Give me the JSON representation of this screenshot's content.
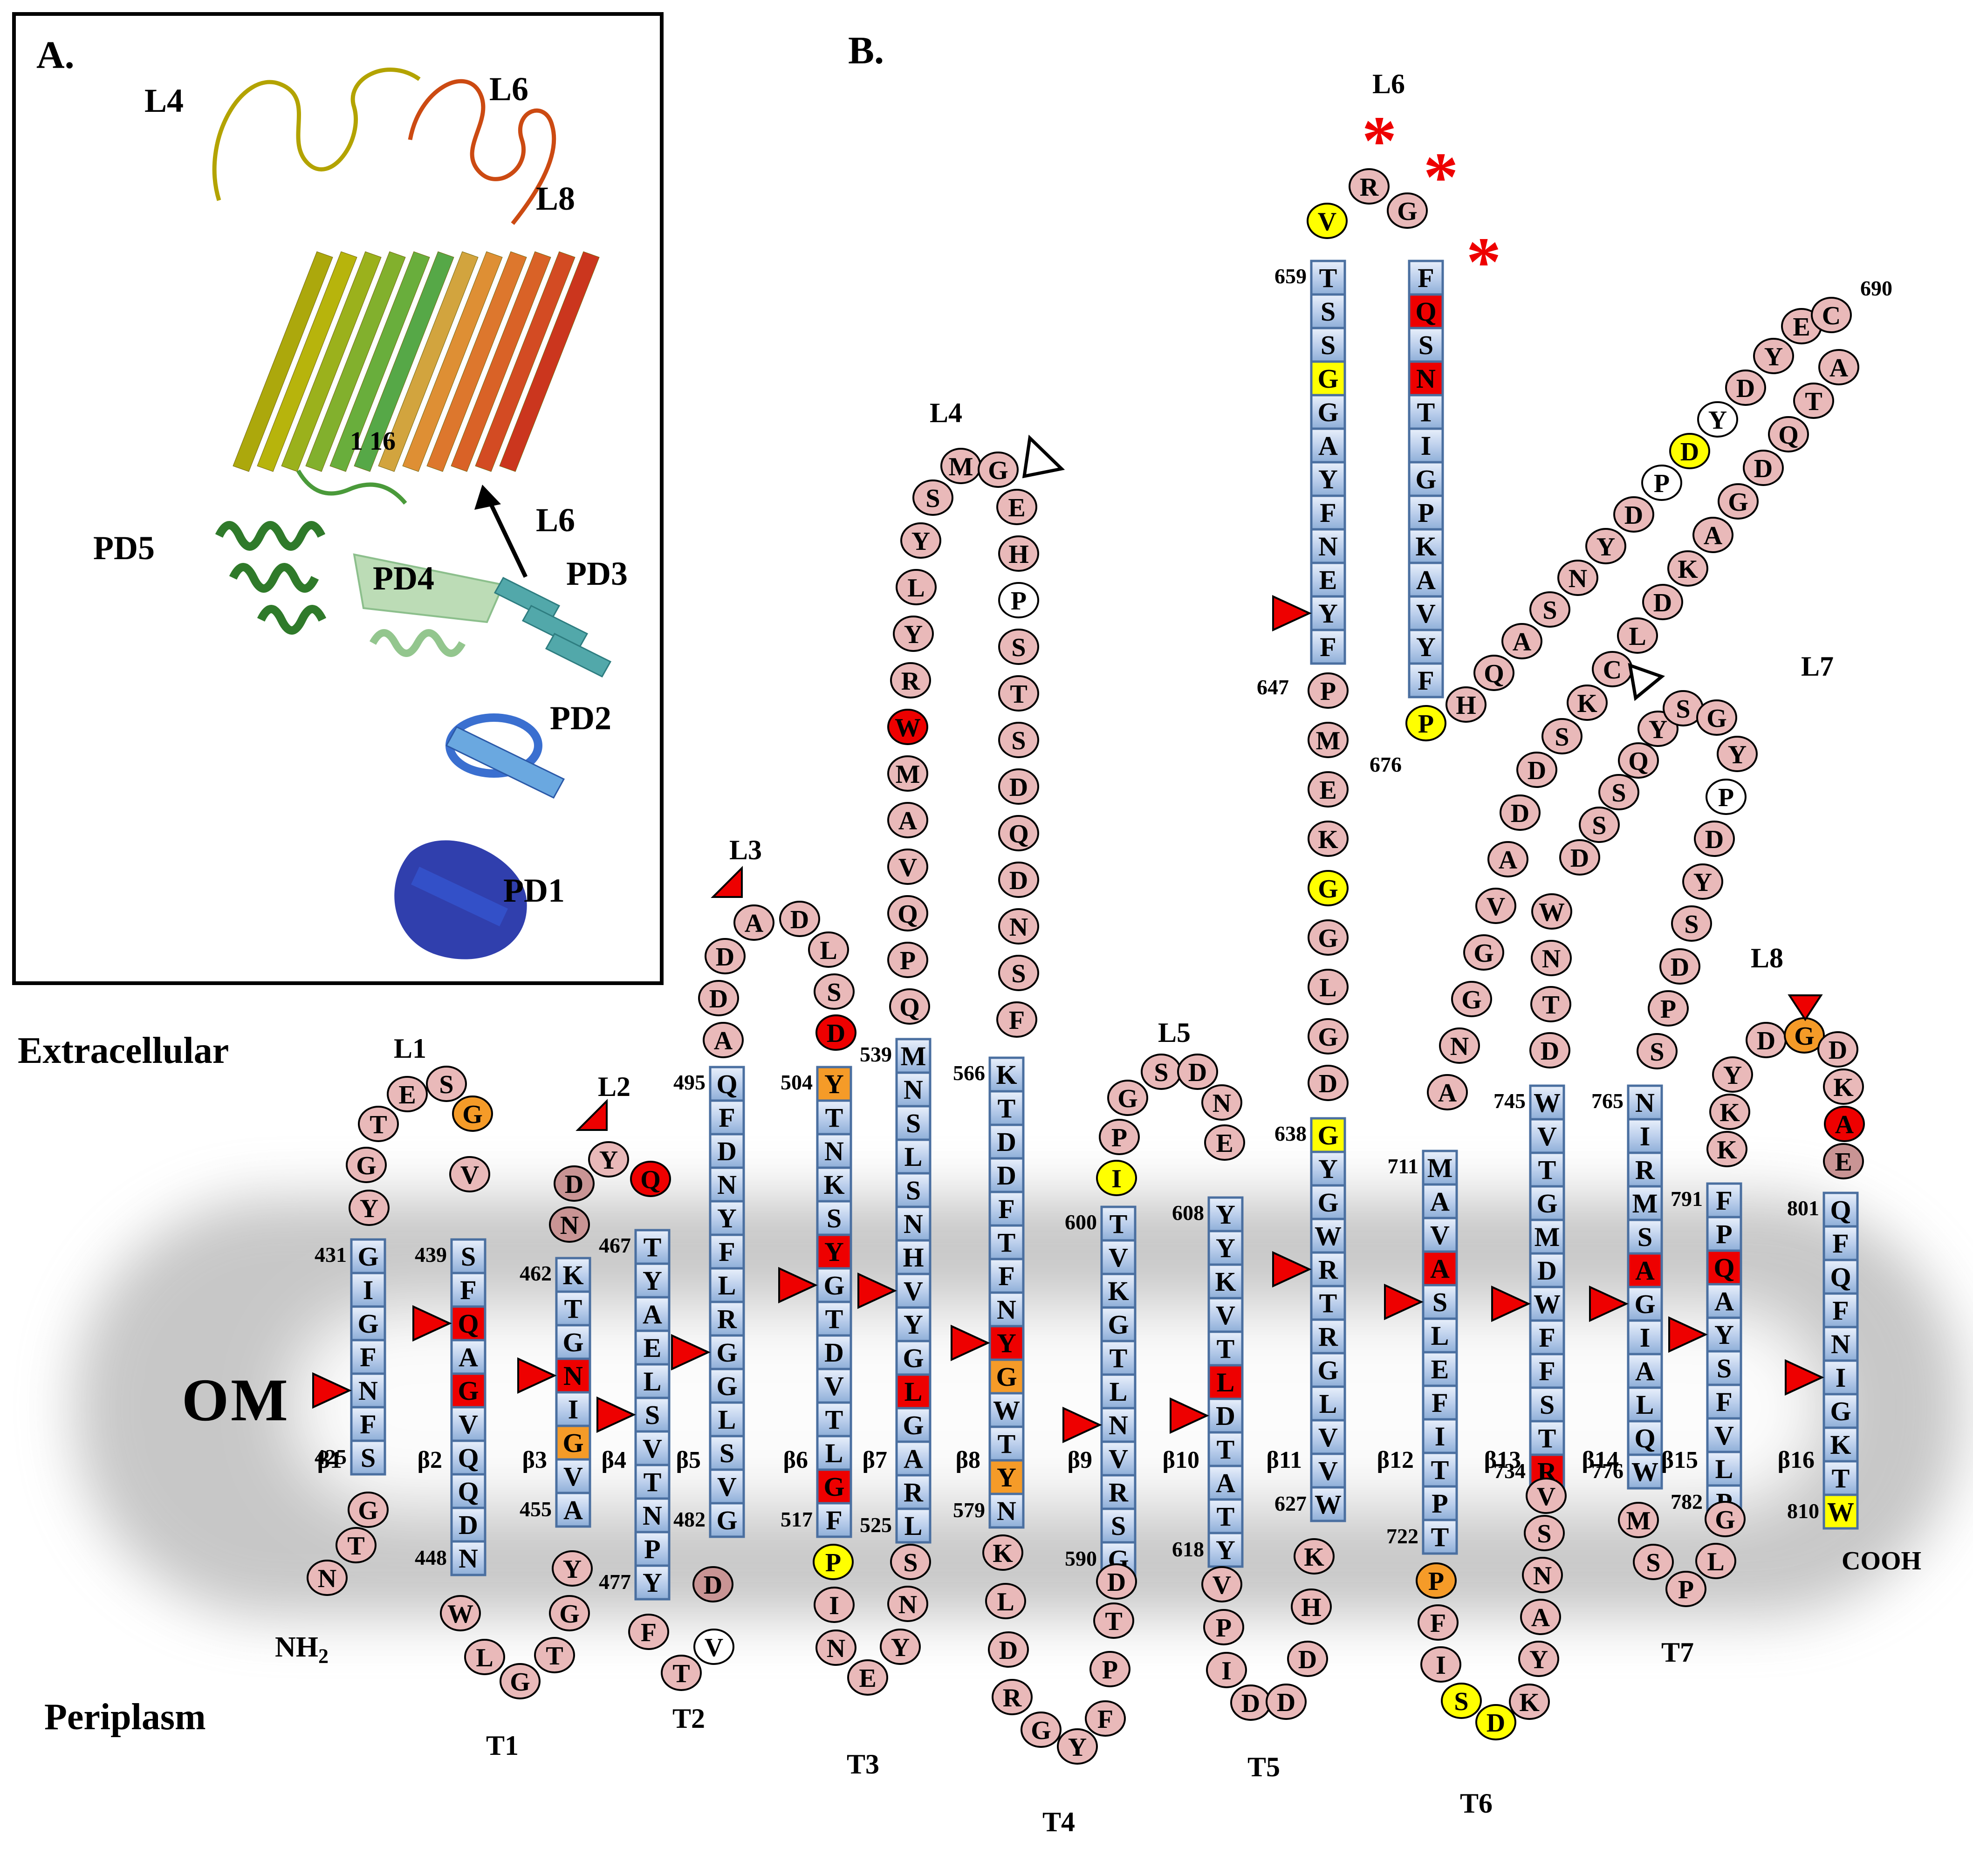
{
  "panel_a": {
    "label": "A.",
    "loop_labels": [
      {
        "id": "pa-l4",
        "text": "L4"
      },
      {
        "id": "pa-l6",
        "text": "L6"
      },
      {
        "id": "pa-l8",
        "text": "L8"
      }
    ],
    "range_label": "1 16",
    "arrow_label": "L6",
    "domain_labels": [
      {
        "id": "pd5",
        "text": "PD5"
      },
      {
        "id": "pd4",
        "text": "PD4"
      },
      {
        "id": "pd3",
        "text": "PD3"
      },
      {
        "id": "pd2",
        "text": "PD2"
      },
      {
        "id": "pd1",
        "text": "PD1"
      }
    ]
  },
  "panel_b": {
    "label": "B.",
    "regions": {
      "extracellular": "Extracellular",
      "membrane": "OM",
      "periplasm": "Periplasm"
    },
    "termini": {
      "n": "NH",
      "n_sub": "2",
      "c": "COOH"
    },
    "palette": {
      "red": "#ee0000",
      "orange": "#f59b28",
      "yellow": "#ffff00",
      "white": "#ffffff",
      "dark": "#c99494",
      "circle": "#e9b9b9",
      "square_light": "#e9f0fb",
      "square_mid": "#b9cdeb",
      "square_deep": "#8fafd8",
      "square_border": "#4a6fa0",
      "membrane_gray": "#9a9a9a"
    },
    "strands": [
      {
        "id": "b1",
        "label": "β1",
        "num_top": "431",
        "num_bottom": "425",
        "res": "GIGFNFS",
        "colors": {},
        "arrow": 4
      },
      {
        "id": "b2",
        "label": "β2",
        "num_top": "439",
        "num_bottom": "448",
        "res": "SFQAGVQQDN",
        "colors": {
          "2": "red",
          "4": "red"
        },
        "arrow": 2
      },
      {
        "id": "b3",
        "label": "β3",
        "num_top": "462",
        "num_bottom": "455",
        "res": "KTGNIGVA",
        "colors": {
          "3": "red",
          "5": "orange"
        },
        "arrow": 3
      },
      {
        "id": "b4",
        "label": "β4",
        "num_top": "467",
        "num_bottom": "477",
        "res": "TYAELSVTNPY",
        "colors": {},
        "arrow": 5
      },
      {
        "id": "b5",
        "label": "β5",
        "num_top": "495",
        "num_bottom": "482",
        "res": "QFDNYFLRGGLSVG",
        "colors": {},
        "arrow": 8
      },
      {
        "id": "b6",
        "label": "β6",
        "num_top": "504",
        "num_bottom": "517",
        "res": "YTNKSYGTDVTLGF",
        "colors": {
          "0": "orange",
          "5": "red",
          "12": "red"
        },
        "arrow": 6
      },
      {
        "id": "b7",
        "label": "β7",
        "num_top": "539",
        "num_bottom": "525",
        "res": "MNSLSNHVYGLGARL",
        "colors": {
          "10": "red"
        },
        "arrow": 7
      },
      {
        "id": "b8",
        "label": "β8",
        "num_top": "566",
        "num_bottom": "579",
        "res": "KTDDFTFNYGWTYN",
        "colors": {
          "8": "red",
          "9": "orange",
          "12": "orange"
        },
        "arrow": 8
      },
      {
        "id": "b9",
        "label": "β9",
        "num_top": "600",
        "num_bottom": "590",
        "res": "TVKGTLNVRSG",
        "colors": {},
        "arrow": 6
      },
      {
        "id": "b10",
        "label": "β10",
        "num_top": "608",
        "num_bottom": "618",
        "res": "YYKVTLDTATY",
        "colors": {
          "5": "red"
        },
        "arrow": 6
      },
      {
        "id": "b11",
        "label": "β11",
        "num_top": "638",
        "num_bottom": "627",
        "res": "GYGWRTRGLVVW",
        "colors": {
          "0": "yellow"
        },
        "arrow": 4
      },
      {
        "id": "b12",
        "label": "β12",
        "num_top": "711",
        "num_bottom": "722",
        "res": "MAVASLEFITPT",
        "colors": {
          "3": "red"
        },
        "arrow": 4
      },
      {
        "id": "b13",
        "label": "β13",
        "num_top": "745",
        "num_bottom": "734",
        "res": "WVTGMDWFFSTR",
        "colors": {
          "11": "red"
        },
        "arrow": 6
      },
      {
        "id": "b14",
        "label": "β14",
        "num_top": "765",
        "num_bottom": "776",
        "res": "NIRMSAGIALQW",
        "colors": {
          "5": "red"
        },
        "arrow": 6
      },
      {
        "id": "b15",
        "label": "β15",
        "num_top": "791",
        "num_bottom": "782",
        "res": "FPQAYSFVLP",
        "colors": {
          "2": "red"
        },
        "arrow": 4
      },
      {
        "id": "b16",
        "label": "β16",
        "num_top": "801",
        "num_bottom": "810",
        "res": "QFQFNIGKTW",
        "colors": {
          "9": "yellow"
        },
        "arrow": 5
      },
      {
        "id": "l6ext_left",
        "label": "",
        "num_top": "659",
        "num_bottom": "",
        "res": "TSSGGAYFNEYF",
        "colors": {
          "3": "yellow"
        },
        "arrow": 10
      },
      {
        "id": "l6ext_right",
        "label": "",
        "num_top": "",
        "num_bottom": "",
        "res": "FQSNTIGPKAVYF",
        "colors": {
          "1": "red",
          "3": "red"
        },
        "arrow": null
      }
    ],
    "chains": [
      {
        "id": "n_tail",
        "res": "NTG",
        "colors": {}
      },
      {
        "id": "t1",
        "label": "T1",
        "res": "WLGTGY",
        "colors": {}
      },
      {
        "id": "t2",
        "label": "T2",
        "res": "FTVD",
        "colors": {
          "2": "white",
          "3": "dark"
        }
      },
      {
        "id": "t3",
        "label": "T3",
        "res": "PINEYNS",
        "colors": {
          "0": "yellow"
        }
      },
      {
        "id": "t4",
        "label": "T4",
        "res": "KLDRGYFPTD",
        "colors": {}
      },
      {
        "id": "t5",
        "label": "T5",
        "res": "VPIDDDHK",
        "colors": {}
      },
      {
        "id": "t6",
        "label": "T6",
        "res": "PFISDKYANSV",
        "colors": {
          "0": "orange",
          "3": "yellow",
          "4": "yellow"
        }
      },
      {
        "id": "t7",
        "label": "T7",
        "res": "MSPLG",
        "colors": {}
      },
      {
        "id": "l1",
        "label": "L1",
        "res": "YGTESGV",
        "colors": {
          "5": "orange"
        }
      },
      {
        "id": "l2",
        "label": "L2",
        "res": "NDYQ",
        "colors": {
          "0": "dark",
          "1": "dark",
          "3": "red"
        }
      },
      {
        "id": "l3",
        "label": "L3",
        "res": "ADDADLSD",
        "colors": {
          "7": "red"
        }
      },
      {
        "id": "l4",
        "label": "L4",
        "res": "QPQVAMWRYLYSMGEHPSTSDQDNSF",
        "colors": {
          "6": "red",
          "16": "white"
        }
      },
      {
        "id": "l5",
        "label": "L5",
        "res": "IPGSDNE",
        "colors": {
          "0": "yellow"
        }
      },
      {
        "id": "l6cap",
        "label": "L6",
        "res": "VRG",
        "colors": {
          "0": "yellow"
        }
      },
      {
        "id": "l6conn",
        "res": "PMEKGGLGD",
        "colors": {
          "4": "yellow"
        },
        "num": "647",
        "num_idx": 0
      },
      {
        "id": "p676",
        "res": "P",
        "colors": {
          "0": "yellow"
        },
        "num": "676",
        "num_idx": 0
      },
      {
        "id": "loop690",
        "res": "HQASNYDPDYDYECATQDGAKDLCKSDDAVGGNA",
        "colors": {
          "7": "white",
          "8": "yellow",
          "9": "white"
        },
        "num": "690",
        "num_idx": 13
      },
      {
        "id": "l7",
        "label": "L7",
        "res": "DTNWDSSQYSGYPDYSDPS",
        "colors": {
          "12": "white"
        }
      },
      {
        "id": "l8",
        "label": "L8",
        "res": "KKYDGDKAE",
        "colors": {
          "4": "orange",
          "7": "red",
          "8": "dark"
        }
      }
    ],
    "markers": {
      "asterisk_glyph": "*",
      "l6_asterisk_count": 3,
      "red_arrowheads": "one per beta strand pointing right",
      "corner_triangles": [
        "L2",
        "L3"
      ],
      "open_triangles": [
        "L4",
        "L7"
      ],
      "down_triangle": "L8"
    }
  }
}
